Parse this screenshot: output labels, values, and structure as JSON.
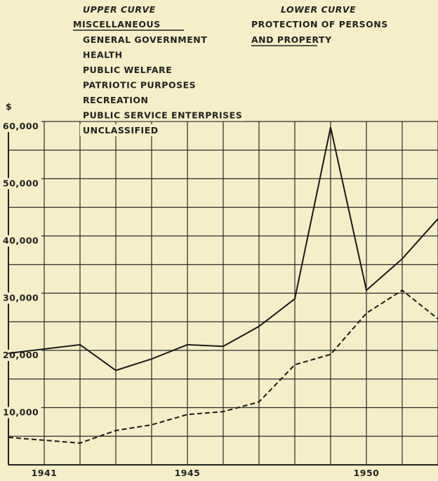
{
  "chart_data": {
    "type": "line",
    "y_label": "$",
    "x": [
      1940,
      1942,
      1943,
      1944,
      1945,
      1946,
      1947,
      1948,
      1949,
      1950,
      1951,
      1952
    ],
    "xlim": [
      1940,
      1952
    ],
    "xticks": [
      1941,
      1945,
      1950
    ],
    "x_minor_ticks": [
      1940,
      1941,
      1942,
      1943,
      1944,
      1945,
      1946,
      1947,
      1948,
      1949,
      1950,
      1951,
      1952
    ],
    "ylim": [
      0,
      60000
    ],
    "yticks": [
      {
        "value": 10000,
        "label": "10,000"
      },
      {
        "value": 20000,
        "label": "20,000"
      },
      {
        "value": 30000,
        "label": "30,000"
      },
      {
        "value": 40000,
        "label": "40,000"
      },
      {
        "value": 50000,
        "label": "50,000"
      },
      {
        "value": 60000,
        "label": "60,000"
      }
    ],
    "y_minor_ticks": [
      5000,
      15000,
      25000,
      35000,
      45000,
      55000
    ],
    "grid": true,
    "series": [
      {
        "heading": "UPPER CURVE",
        "name": "MISCELLANEOUS",
        "items": [
          "GENERAL GOVERNMENT",
          "HEALTH",
          "PUBLIC WELFARE",
          "PATRIOTIC PURPOSES",
          "RECREATION",
          "PUBLIC SERVICE ENTERPRISES",
          "UNCLASSIFIED"
        ],
        "color": "#1a1a1a",
        "style": "solid",
        "values": [
          19500,
          21000,
          16500,
          18500,
          21000,
          20700,
          24200,
          29000,
          59000,
          30500,
          36000,
          43000
        ]
      },
      {
        "heading": "LOWER CURVE",
        "name_lines": [
          "PROTECTION OF PERSONS",
          "AND PROPERTY"
        ],
        "color": "#1a1a1a",
        "style": "dashed",
        "values": [
          4800,
          3800,
          6000,
          7000,
          8800,
          9300,
          11000,
          17500,
          19300,
          26500,
          30500,
          25500
        ]
      }
    ]
  }
}
